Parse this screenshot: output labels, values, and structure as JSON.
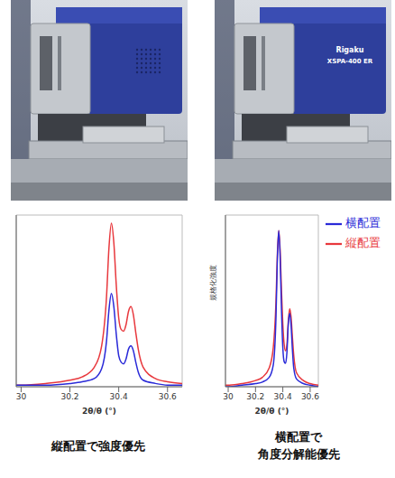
{
  "chart_data": [
    {
      "type": "line",
      "x_label": "2θ/θ (°)",
      "x": [
        29.98,
        30.0,
        30.1,
        30.2,
        30.25,
        30.3,
        30.33,
        30.35,
        30.36,
        30.37,
        30.38,
        30.39,
        30.4,
        30.41,
        30.42,
        30.43,
        30.44,
        30.45,
        30.46,
        30.47,
        30.48,
        30.5,
        30.55,
        30.6,
        30.66
      ],
      "series": [
        {
          "name": "縦配置",
          "color": "#e8383d",
          "values": [
            1,
            1,
            2,
            4,
            6,
            12,
            25,
            55,
            85,
            100,
            88,
            62,
            42,
            35,
            34,
            38,
            46,
            49,
            44,
            33,
            23,
            12,
            5,
            3,
            2
          ]
        },
        {
          "name": "横配置",
          "color": "#2a2ad8",
          "values": [
            1,
            1,
            1,
            2,
            3,
            5,
            11,
            28,
            47,
            57,
            49,
            32,
            19,
            15,
            14,
            17,
            23,
            25,
            22,
            15,
            9,
            4,
            2,
            1,
            1
          ]
        }
      ],
      "xlim": [
        29.98,
        30.66
      ],
      "xticks": [
        30,
        30.2,
        30.4,
        30.6
      ],
      "ylim": [
        0,
        105
      ],
      "tick_labels": "x",
      "caption": [
        "縦配置で強度優先"
      ]
    },
    {
      "type": "line",
      "x_label": "2θ/θ (°)",
      "y_label": "規格化強度",
      "x": [
        29.98,
        30.0,
        30.1,
        30.2,
        30.25,
        30.3,
        30.33,
        30.35,
        30.36,
        30.37,
        30.38,
        30.39,
        30.4,
        30.41,
        30.42,
        30.43,
        30.44,
        30.45,
        30.46,
        30.47,
        30.48,
        30.5,
        30.55,
        30.6,
        30.66
      ],
      "series": [
        {
          "name": "縦配置",
          "color": "#e8383d",
          "values": [
            1,
            1,
            2,
            4,
            6,
            12,
            25,
            55,
            85,
            100,
            88,
            62,
            40,
            27,
            23,
            27,
            42,
            50,
            45,
            32,
            20,
            9,
            4,
            2,
            1
          ]
        },
        {
          "name": "横配置",
          "color": "#2a2ad8",
          "values": [
            0,
            0,
            1,
            2,
            3,
            6,
            14,
            45,
            82,
            100,
            84,
            50,
            25,
            16,
            15,
            22,
            40,
            47,
            40,
            24,
            12,
            5,
            2,
            1,
            0
          ]
        }
      ],
      "xlim": [
        29.98,
        30.66
      ],
      "xticks": [
        30,
        30.2,
        30.4,
        30.6
      ],
      "ylim": [
        0,
        110
      ],
      "tick_labels": "x",
      "legend": "upper right",
      "caption": [
        "横配置で",
        "角度分解能優先"
      ]
    }
  ],
  "photo_labels": [
    "Rigaku",
    "XSPA-400 ER"
  ]
}
